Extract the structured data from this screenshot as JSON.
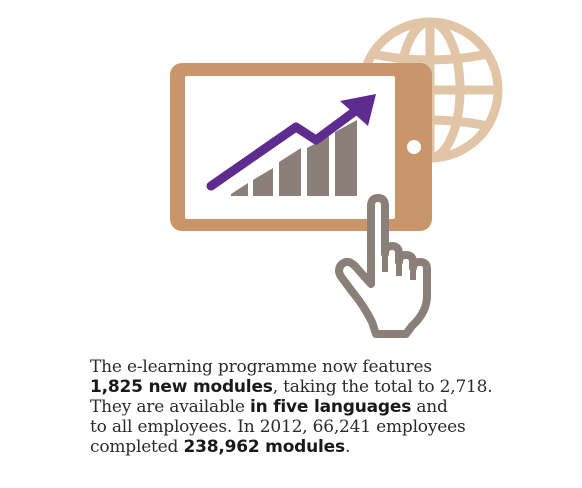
{
  "colors": {
    "tablet": "#c9956a",
    "globe": "#e2c4a7",
    "arrow": "#5e2b8f",
    "bars": "#8a8079",
    "hand_outline": "#8a8079",
    "text": "#2b2b2b"
  },
  "icons": {
    "globe": "globe-icon",
    "tablet": "tablet-icon",
    "chart": "growth-chart-icon",
    "arrow": "upward-trend-arrow-icon",
    "hand": "pointing-hand-icon"
  },
  "caption": {
    "line1": "The e-learning programme now features",
    "line2_bold": "1,825 new modules",
    "line2_rest": ", taking the total to 2,718.",
    "line3_start": "They are available ",
    "line3_bold": "in five languages",
    "line3_rest": " and",
    "line4": "to all employees. In 2012, 66,241 employees",
    "line5_start": "completed ",
    "line5_bold": "238,962 modules",
    "line5_rest": "."
  }
}
